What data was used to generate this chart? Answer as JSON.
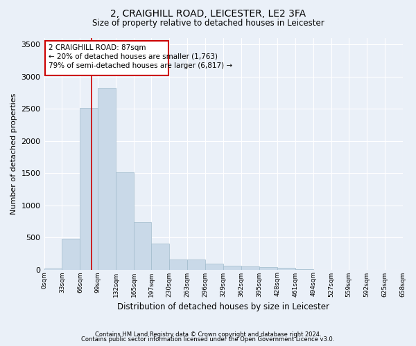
{
  "title": "2, CRAIGHILL ROAD, LEICESTER, LE2 3FA",
  "subtitle": "Size of property relative to detached houses in Leicester",
  "xlabel": "Distribution of detached houses by size in Leicester",
  "ylabel": "Number of detached properties",
  "bar_color": "#c9d9e8",
  "bar_edge_color": "#a0bbcc",
  "background_color": "#eaf0f8",
  "grid_color": "#ffffff",
  "annotation_box_color": "#cc0000",
  "annotation_line_color": "#cc0000",
  "property_line_x": 87,
  "annotation_text_line1": "2 CRAIGHILL ROAD: 87sqm",
  "annotation_text_line2": "← 20% of detached houses are smaller (1,763)",
  "annotation_text_line3": "79% of semi-detached houses are larger (6,817) →",
  "footer_line1": "Contains HM Land Registry data © Crown copyright and database right 2024.",
  "footer_line2": "Contains public sector information licensed under the Open Government Licence v3.0.",
  "bin_edges": [
    0,
    33,
    66,
    99,
    132,
    165,
    197,
    230,
    263,
    296,
    329,
    362,
    395,
    428,
    461,
    494,
    527,
    559,
    592,
    625,
    658
  ],
  "bin_labels": [
    "0sqm",
    "33sqm",
    "66sqm",
    "99sqm",
    "132sqm",
    "165sqm",
    "197sqm",
    "230sqm",
    "263sqm",
    "296sqm",
    "329sqm",
    "362sqm",
    "395sqm",
    "428sqm",
    "461sqm",
    "494sqm",
    "527sqm",
    "559sqm",
    "592sqm",
    "625sqm",
    "658sqm"
  ],
  "bar_heights": [
    20,
    480,
    2510,
    2820,
    1510,
    740,
    400,
    160,
    160,
    90,
    60,
    50,
    40,
    30,
    10,
    0,
    0,
    0,
    0,
    0
  ],
  "ylim": [
    0,
    3600
  ],
  "yticks": [
    0,
    500,
    1000,
    1500,
    2000,
    2500,
    3000,
    3500
  ]
}
